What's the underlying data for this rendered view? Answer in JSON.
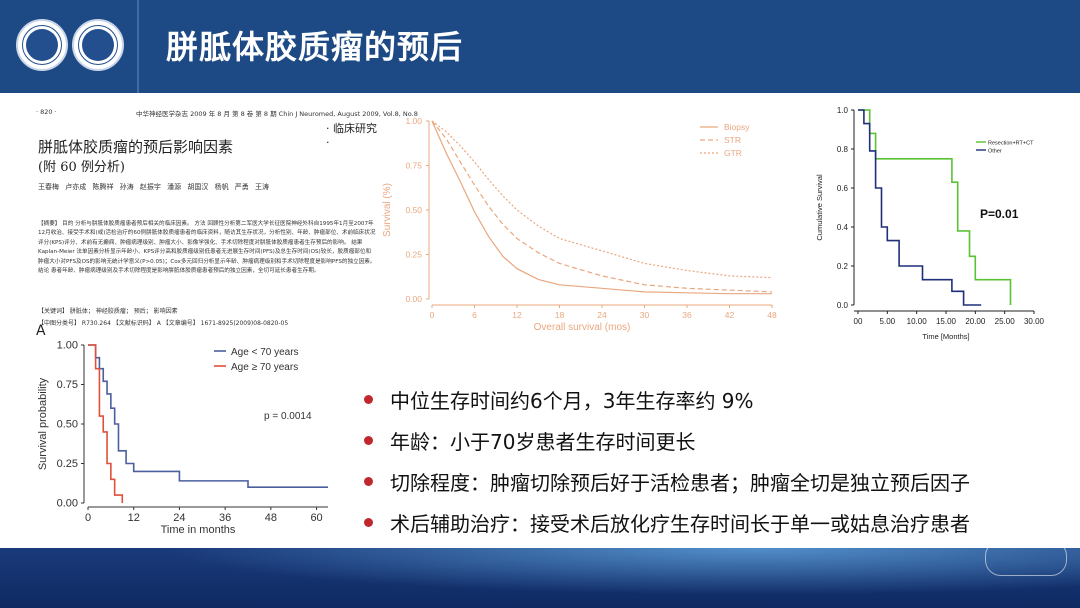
{
  "slide": {
    "title": "胼胝体胶质瘤的预后"
  },
  "paper": {
    "page_header_left": "· 820 ·",
    "journal_header": "中华神经医学杂志 2009 年 8 月 第 8 卷 第 8 期   Chin J Neuromed, August 2009, Vol.8, No.8",
    "section": "· 临床研究 ·",
    "title": "胼胝体胶质瘤的预后影响因素",
    "subtitle": "(附 60 例分析)",
    "authors": "王春梅 卢亦成 陈腾祥 孙涛 赵振宇 潘源 胡国汉 杨帆 严勇 王涛",
    "abstract": "【摘要】 目的 分析与胼胝体胶质瘤患者预后相关的临床因素。 方法 回顾性分析第二军医大学长征医院神经外科自1995年1月至2007年12月收治、接受手术和(或)活检治疗的60例胼胝体胶质瘤患者的临床资料，随访其生存状况，分析性别、年龄、肿瘤部位、术前临床状况评分(KPS)评分、术前有无癫痫、肿瘤病理级别、肿瘤大小、影像学强化、手术切除程度对胼胝体胶质瘤患者生存预后的影响。 结果 Kaplan-Meier 法单因素分析显示年龄小、KPS评分高和胶质瘤级别低患者无进展生存时间(PFS)及总生存时间(OS)较长，胶质瘤部位和肿瘤大小对PFS及OS的影响无统计学意义(P>0.05)；Cox多元回归分析显示年龄、肿瘤病理级别和手术切除程度是影响PFS的独立因素。 结论 患者年龄、肿瘤病理级别及手术切除程度是影响胼胝体胶质瘤患者预后的独立因素，全切可延长患者生存期。",
    "keywords": "【关键词】 胼胝体； 神经胶质瘤； 预后； 影响因素",
    "classification": "【中图分类号】 R730.264   【文献标识码】 A   【文章编号】 1671-8925(2009)08-0820-05"
  },
  "bullets": [
    "中位生存时间约6个月，3年生存率约 9%",
    "年龄：小于70岁患者生存时间更长",
    "切除程度：肿瘤切除预后好于活检患者；肿瘤全切是独立预后因子",
    "术后辅助治疗：接受术后放化疗生存时间长于单一或姑息治疗患者"
  ],
  "colors": {
    "header_bg": "#1d4a85",
    "bullet_dot": "#c0282e",
    "km_blue": "#4a5f9e",
    "km_red": "#e0503a",
    "overall_orange": "#e9a77f",
    "resection_green": "#5bc236",
    "other_navy": "#1f2f7a"
  },
  "chart_data": [
    {
      "type": "line",
      "panel_label": "A",
      "xlabel": "Time in months",
      "ylabel": "Survival probability",
      "xlim": [
        0,
        63
      ],
      "ylim": [
        0,
        1
      ],
      "xticks": [
        0,
        12,
        24,
        36,
        48,
        60
      ],
      "yticks": [
        "0.00",
        "0.25",
        "0.50",
        "0.75",
        "1.00"
      ],
      "annotation": "p = 0.0014",
      "legend_position": "top-right",
      "series": [
        {
          "name": "Age < 70 years",
          "color": "#4a5f9e",
          "x": [
            0,
            1,
            2,
            3,
            4,
            5,
            6,
            7,
            8,
            10,
            12,
            18,
            24,
            36,
            42,
            48,
            63
          ],
          "y": [
            1,
            1,
            0.92,
            0.85,
            0.77,
            0.69,
            0.6,
            0.5,
            0.33,
            0.25,
            0.2,
            0.2,
            0.14,
            0.14,
            0.1,
            0.1,
            0.1
          ]
        },
        {
          "name": "Age ≥ 70 years",
          "color": "#e0503a",
          "x": [
            0,
            1,
            2,
            3,
            4,
            5,
            6,
            7,
            8,
            9
          ],
          "y": [
            1,
            1,
            0.85,
            0.55,
            0.45,
            0.25,
            0.15,
            0.05,
            0.05,
            0
          ]
        }
      ]
    },
    {
      "type": "line",
      "xlabel": "Overall survival (mos)",
      "ylabel": "Survival (%)",
      "xlim": [
        0,
        48
      ],
      "ylim": [
        0,
        1
      ],
      "xticks": [
        0,
        6,
        12,
        18,
        24,
        30,
        36,
        42,
        48
      ],
      "yticks": [
        "0.00",
        "0.25",
        "0.50",
        "0.75",
        "1.00"
      ],
      "legend_position": "top-right",
      "series": [
        {
          "name": "Biopsy",
          "style": "solid",
          "x": [
            0,
            2,
            4,
            6,
            8,
            10,
            12,
            15,
            18,
            24,
            30,
            36,
            42,
            48
          ],
          "y": [
            1,
            0.82,
            0.66,
            0.49,
            0.35,
            0.24,
            0.17,
            0.11,
            0.08,
            0.06,
            0.04,
            0.035,
            0.03,
            0.03
          ]
        },
        {
          "name": "STR",
          "style": "dashed",
          "x": [
            0,
            2,
            4,
            6,
            8,
            10,
            12,
            15,
            18,
            24,
            30,
            36,
            42,
            48
          ],
          "y": [
            1,
            0.9,
            0.77,
            0.64,
            0.52,
            0.42,
            0.34,
            0.26,
            0.2,
            0.13,
            0.08,
            0.06,
            0.05,
            0.04
          ]
        },
        {
          "name": "GTR",
          "style": "dotted",
          "x": [
            0,
            2,
            4,
            6,
            8,
            10,
            12,
            15,
            18,
            24,
            30,
            36,
            42,
            48
          ],
          "y": [
            1,
            0.94,
            0.86,
            0.77,
            0.67,
            0.58,
            0.5,
            0.41,
            0.34,
            0.27,
            0.2,
            0.16,
            0.13,
            0.12
          ]
        }
      ]
    },
    {
      "type": "line",
      "xlabel": "Time [Months]",
      "ylabel": "Cumulative Survival",
      "xlim": [
        0,
        30
      ],
      "ylim": [
        0,
        1
      ],
      "xticks": [
        "00",
        "5.00",
        "10.00",
        "15.00",
        "20.00",
        "25.00",
        "30.00"
      ],
      "yticks": [
        "0.0",
        "0.2",
        "0.4",
        "0.6",
        "0.8",
        "1.0"
      ],
      "annotation": "P=0.01",
      "legend_position": "top-right",
      "series": [
        {
          "name": "Resection+RT+CT",
          "color": "#5bc236",
          "x": [
            0,
            2,
            2,
            3,
            3,
            16,
            16,
            17,
            17,
            19,
            19,
            20,
            20,
            26,
            26
          ],
          "y": [
            1,
            1,
            0.88,
            0.88,
            0.75,
            0.75,
            0.63,
            0.63,
            0.38,
            0.38,
            0.25,
            0.25,
            0.13,
            0.13,
            0
          ]
        },
        {
          "name": "Other",
          "color": "#1f2f7a",
          "x": [
            0,
            1,
            1,
            2,
            2,
            3,
            3,
            4,
            4,
            5,
            5,
            7,
            7,
            11,
            11,
            16,
            16,
            18,
            18,
            21
          ],
          "y": [
            1,
            1,
            0.93,
            0.93,
            0.79,
            0.79,
            0.6,
            0.6,
            0.4,
            0.4,
            0.33,
            0.33,
            0.2,
            0.2,
            0.13,
            0.13,
            0.07,
            0.07,
            0,
            0
          ]
        }
      ]
    }
  ]
}
